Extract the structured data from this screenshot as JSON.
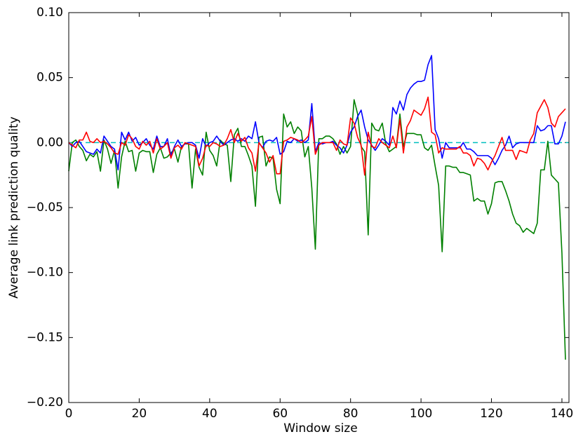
{
  "chart_data": {
    "type": "line",
    "x_label": "Window size",
    "y_label": "Average link prediction quality",
    "x": [
      0,
      1,
      2,
      3,
      4,
      5,
      6,
      7,
      8,
      9,
      10,
      11,
      12,
      13,
      14,
      15,
      16,
      17,
      18,
      19,
      20,
      21,
      22,
      23,
      24,
      25,
      26,
      27,
      28,
      29,
      30,
      31,
      32,
      33,
      34,
      35,
      36,
      37,
      38,
      39,
      40,
      41,
      42,
      43,
      44,
      45,
      46,
      47,
      48,
      49,
      50,
      51,
      52,
      53,
      54,
      55,
      56,
      57,
      58,
      59,
      60,
      61,
      62,
      63,
      64,
      65,
      66,
      67,
      68,
      69,
      70,
      71,
      72,
      73,
      74,
      75,
      76,
      77,
      78,
      79,
      80,
      81,
      82,
      83,
      84,
      85,
      86,
      87,
      88,
      89,
      90,
      91,
      92,
      93,
      94,
      95,
      96,
      97,
      98,
      99,
      100,
      101,
      102,
      103,
      104,
      105,
      106,
      107,
      108,
      109,
      110,
      111,
      112,
      113,
      114,
      115,
      116,
      117,
      118,
      119,
      120,
      121,
      122,
      123,
      124,
      125,
      126,
      127,
      128,
      129,
      130,
      131,
      132,
      133,
      134,
      135,
      136,
      137,
      138,
      139,
      140,
      141
    ],
    "series": [
      {
        "color": "#008000",
        "values": [
          -0.022,
          0,
          0.002,
          -0.003,
          -0.006,
          -0.014,
          -0.009,
          -0.011,
          -0.007,
          -0.022,
          0.002,
          -0.005,
          -0.016,
          -0.006,
          -0.035,
          -0.011,
          0.001,
          -0.007,
          -0.006,
          -0.022,
          -0.008,
          -0.006,
          -0.007,
          -0.007,
          -0.023,
          -0.009,
          -0.004,
          -0.012,
          -0.011,
          -0.008,
          -0.005,
          -0.015,
          -0.003,
          -0.001,
          -0.001,
          -0.035,
          -0.005,
          -0.019,
          -0.025,
          0.008,
          -0.006,
          -0.01,
          -0.018,
          0.002,
          -0.001,
          -0.002,
          -0.03,
          0.006,
          0.011,
          -0.003,
          -0.003,
          -0.01,
          -0.018,
          -0.049,
          0.004,
          0.005,
          -0.018,
          -0.011,
          -0.012,
          -0.036,
          -0.047,
          0.022,
          0.012,
          0.016,
          0.007,
          0.012,
          0.009,
          -0.011,
          -0.003,
          -0.035,
          -0.082,
          0.003,
          0.003,
          0.005,
          0.005,
          0.003,
          -0.001,
          -0.009,
          -0.003,
          -0.008,
          -0.003,
          0.033,
          0.022,
          -0.003,
          -0.007,
          -0.071,
          0.015,
          0.01,
          0.009,
          0.015,
          -0.001,
          -0.007,
          -0.005,
          -0.003,
          0.022,
          -0.003,
          0.007,
          0.007,
          0.007,
          0.006,
          0.006,
          -0.004,
          -0.006,
          -0.002,
          -0.018,
          -0.033,
          -0.084,
          -0.018,
          -0.018,
          -0.019,
          -0.019,
          -0.023,
          -0.023,
          -0.024,
          -0.025,
          -0.045,
          -0.043,
          -0.045,
          -0.045,
          -0.055,
          -0.047,
          -0.031,
          -0.03,
          -0.03,
          -0.037,
          -0.045,
          -0.055,
          -0.062,
          -0.064,
          -0.069,
          -0.066,
          -0.068,
          -0.07,
          -0.062,
          -0.021,
          -0.021,
          0.001,
          -0.025,
          -0.028,
          -0.031,
          -0.085,
          -0.167
        ]
      },
      {
        "color": "#0000ff",
        "values": [
          0,
          -0.003,
          0,
          0.001,
          -0.003,
          -0.007,
          -0.008,
          -0.009,
          -0.005,
          -0.008,
          0.005,
          0.001,
          -0.003,
          -0.005,
          -0.021,
          0.008,
          0.002,
          0.008,
          0.001,
          0.004,
          -0.002,
          0,
          0.003,
          -0.002,
          -0.005,
          0.005,
          -0.003,
          -0.003,
          0.003,
          -0.01,
          -0.003,
          0.002,
          -0.003,
          -0.001,
          0,
          0,
          -0.002,
          -0.012,
          0.003,
          -0.003,
          0,
          0.001,
          0.005,
          0.001,
          -0.002,
          0,
          0.002,
          0.003,
          0.001,
          0.003,
          0.001,
          0.005,
          0.003,
          0.016,
          0,
          -0.004,
          0.001,
          0.002,
          0.001,
          0.004,
          -0.009,
          -0.007,
          0.001,
          0,
          0.003,
          0.001,
          0.002,
          0,
          0.002,
          0.03,
          -0.007,
          0,
          -0.001,
          0,
          0,
          0.001,
          -0.002,
          -0.004,
          -0.008,
          -0.002,
          0.008,
          0.012,
          0.02,
          0.025,
          0.012,
          0.002,
          -0.002,
          -0.006,
          -0.002,
          0.003,
          0.001,
          -0.002,
          0.027,
          0.022,
          0.032,
          0.025,
          0.037,
          0.042,
          0.045,
          0.047,
          0.047,
          0.048,
          0.06,
          0.067,
          0.01,
          0.003,
          -0.012,
          0,
          -0.004,
          -0.004,
          -0.004,
          -0.004,
          0,
          -0.005,
          -0.005,
          -0.007,
          -0.01,
          -0.01,
          -0.01,
          -0.01,
          -0.012,
          -0.017,
          -0.012,
          -0.006,
          -0.002,
          0.005,
          -0.004,
          -0.001,
          0,
          0,
          0,
          0,
          0,
          0.013,
          0.009,
          0.01,
          0.013,
          0.013,
          -0.001,
          -0.001,
          0.005,
          0.016
        ]
      },
      {
        "color": "#ff0000",
        "values": [
          0,
          -0.002,
          -0.004,
          0.002,
          0.002,
          0.008,
          0.001,
          0,
          0.003,
          0,
          0.001,
          -0.001,
          -0.004,
          -0.008,
          -0.009,
          0,
          -0.002,
          0.006,
          0.003,
          -0.003,
          -0.005,
          0.001,
          -0.002,
          0.001,
          -0.008,
          0.003,
          -0.005,
          -0.003,
          0,
          -0.012,
          -0.004,
          -0.002,
          -0.005,
          0,
          -0.001,
          -0.002,
          -0.003,
          -0.018,
          -0.012,
          -0.002,
          -0.003,
          0,
          -0.001,
          -0.003,
          -0.002,
          0.003,
          0.01,
          0,
          0.007,
          0.001,
          0.004,
          -0.004,
          -0.008,
          -0.022,
          0,
          -0.004,
          -0.008,
          -0.015,
          -0.01,
          -0.024,
          -0.024,
          0.001,
          0.002,
          0.004,
          0.003,
          0.002,
          0,
          0.002,
          0.005,
          0.02,
          -0.009,
          -0.002,
          0,
          0,
          0,
          0,
          -0.006,
          0.002,
          -0.001,
          -0.002,
          0.019,
          0.015,
          0.004,
          -0.002,
          -0.025,
          0.008,
          -0.003,
          -0.004,
          0.003,
          0,
          -0.002,
          -0.004,
          0.005,
          -0.004,
          0.018,
          -0.008,
          0.012,
          0.017,
          0.025,
          0.023,
          0.021,
          0.026,
          0.035,
          0.008,
          0.006,
          -0.008,
          -0.004,
          -0.005,
          -0.005,
          -0.005,
          -0.005,
          -0.003,
          -0.008,
          -0.008,
          -0.01,
          -0.018,
          -0.012,
          -0.013,
          -0.016,
          -0.021,
          -0.015,
          -0.01,
          -0.003,
          0.004,
          -0.006,
          -0.006,
          -0.006,
          -0.013,
          -0.006,
          -0.007,
          -0.008,
          0.002,
          0.007,
          0.023,
          0.028,
          0.033,
          0.027,
          0.015,
          0.012,
          0.02,
          0.023,
          0.026
        ]
      }
    ],
    "reference_line": {
      "y": 0,
      "color": "#00bfbf",
      "dashed": true
    },
    "xlim": [
      0,
      142
    ],
    "xticks": [
      0,
      20,
      40,
      60,
      80,
      100,
      120,
      140
    ],
    "ylim": [
      -0.2,
      0.1
    ],
    "yticks": [
      {
        "value": -0.2,
        "label": "−0.20"
      },
      {
        "value": -0.15,
        "label": "−0.15"
      },
      {
        "value": -0.1,
        "label": "−0.10"
      },
      {
        "value": -0.05,
        "label": "−0.05"
      },
      {
        "value": 0,
        "label": "0.00"
      },
      {
        "value": 0.05,
        "label": "0.05"
      },
      {
        "value": 0.1,
        "label": "0.10"
      }
    ],
    "grid": false
  }
}
